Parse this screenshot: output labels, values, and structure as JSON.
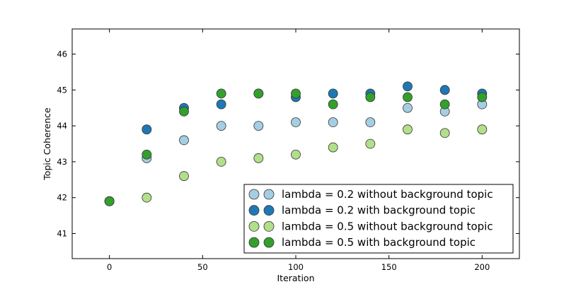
{
  "chart_data": {
    "type": "scatter",
    "title": "",
    "xlabel": "Iteration",
    "ylabel": "Topic Coherence",
    "xlim": [
      -20,
      220
    ],
    "ylim": [
      40.3,
      46.7
    ],
    "xticks": [
      0,
      50,
      100,
      150,
      200
    ],
    "yticks": [
      41,
      42,
      43,
      44,
      45,
      46
    ],
    "grid": false,
    "legend_position": "lower-right",
    "series": [
      {
        "name": "lambda = 0.2 without background topic",
        "color": "#a6cee3",
        "x": [
          0,
          20,
          40,
          60,
          80,
          100,
          120,
          140,
          160,
          180,
          200
        ],
        "y": [
          41.9,
          43.1,
          43.6,
          44.0,
          44.0,
          44.1,
          44.1,
          44.1,
          44.5,
          44.4,
          44.6
        ]
      },
      {
        "name": "lambda = 0.2 with background topic",
        "color": "#1f78b4",
        "x": [
          0,
          20,
          40,
          60,
          80,
          100,
          120,
          140,
          160,
          180,
          200
        ],
        "y": [
          41.9,
          43.9,
          44.5,
          44.6,
          44.9,
          44.8,
          44.9,
          44.9,
          45.1,
          45.0,
          44.9
        ]
      },
      {
        "name": "lambda = 0.5 without background topic",
        "color": "#b2df8a",
        "x": [
          0,
          20,
          40,
          60,
          80,
          100,
          120,
          140,
          160,
          180,
          200
        ],
        "y": [
          41.9,
          42.0,
          42.6,
          43.0,
          43.1,
          43.2,
          43.4,
          43.5,
          43.9,
          43.8,
          43.9
        ]
      },
      {
        "name": "lambda = 0.5 with background topic",
        "color": "#33a02c",
        "x": [
          0,
          20,
          40,
          60,
          80,
          100,
          120,
          140,
          160,
          180,
          200
        ],
        "y": [
          41.9,
          43.2,
          44.4,
          44.9,
          44.9,
          44.9,
          44.6,
          44.8,
          44.8,
          44.6,
          44.8
        ]
      }
    ]
  }
}
